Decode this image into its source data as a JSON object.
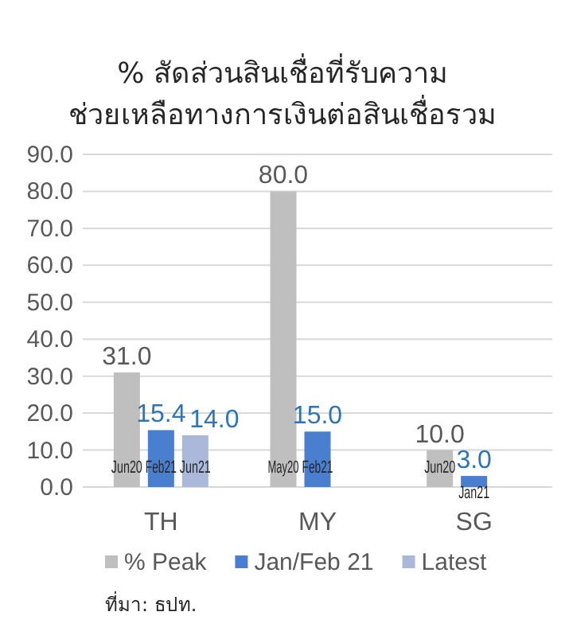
{
  "chart_data": {
    "type": "bar",
    "title": "% สัดส่วนสินเชื่อที่รับความ\nช่วยเหลือทางการเงินต่อสินเชื่อรวม",
    "categories": [
      "TH",
      "MY",
      "SG"
    ],
    "series": [
      {
        "name": "% Peak",
        "color": "#bfbfbf",
        "values": [
          31.0,
          80.0,
          10.0
        ],
        "value_labels": [
          "31.0",
          "80.0",
          "10.0"
        ]
      },
      {
        "name": "Jan/Feb 21",
        "color": "#4a7fd0",
        "values": [
          15.4,
          15.0,
          3.0
        ],
        "value_labels": [
          "15.4",
          "15.0",
          "3.0"
        ]
      },
      {
        "name": "Latest",
        "color": "#aab9da",
        "values": [
          14.0,
          null,
          null
        ],
        "value_labels": [
          "14.0",
          null,
          null
        ]
      }
    ],
    "ylim": [
      0,
      90
    ],
    "yticks": [
      {
        "value": 0,
        "label": "0.0"
      },
      {
        "value": 10,
        "label": "10.0"
      },
      {
        "value": 20,
        "label": "20.0"
      },
      {
        "value": 30,
        "label": "30.0"
      },
      {
        "value": 40,
        "label": "40.0"
      },
      {
        "value": 50,
        "label": "50.0"
      },
      {
        "value": 60,
        "label": "60.0"
      },
      {
        "value": 70,
        "label": "70.0"
      },
      {
        "value": 80,
        "label": "80.0"
      },
      {
        "value": 90,
        "label": "90.0"
      }
    ],
    "grid": "y",
    "legend": "bottom",
    "annotations": [
      "Jun20",
      "Feb21",
      "Jun21",
      "May20",
      "Feb21",
      "Jun20",
      "Jan21",
      "ที่มา: ธปท."
    ]
  }
}
